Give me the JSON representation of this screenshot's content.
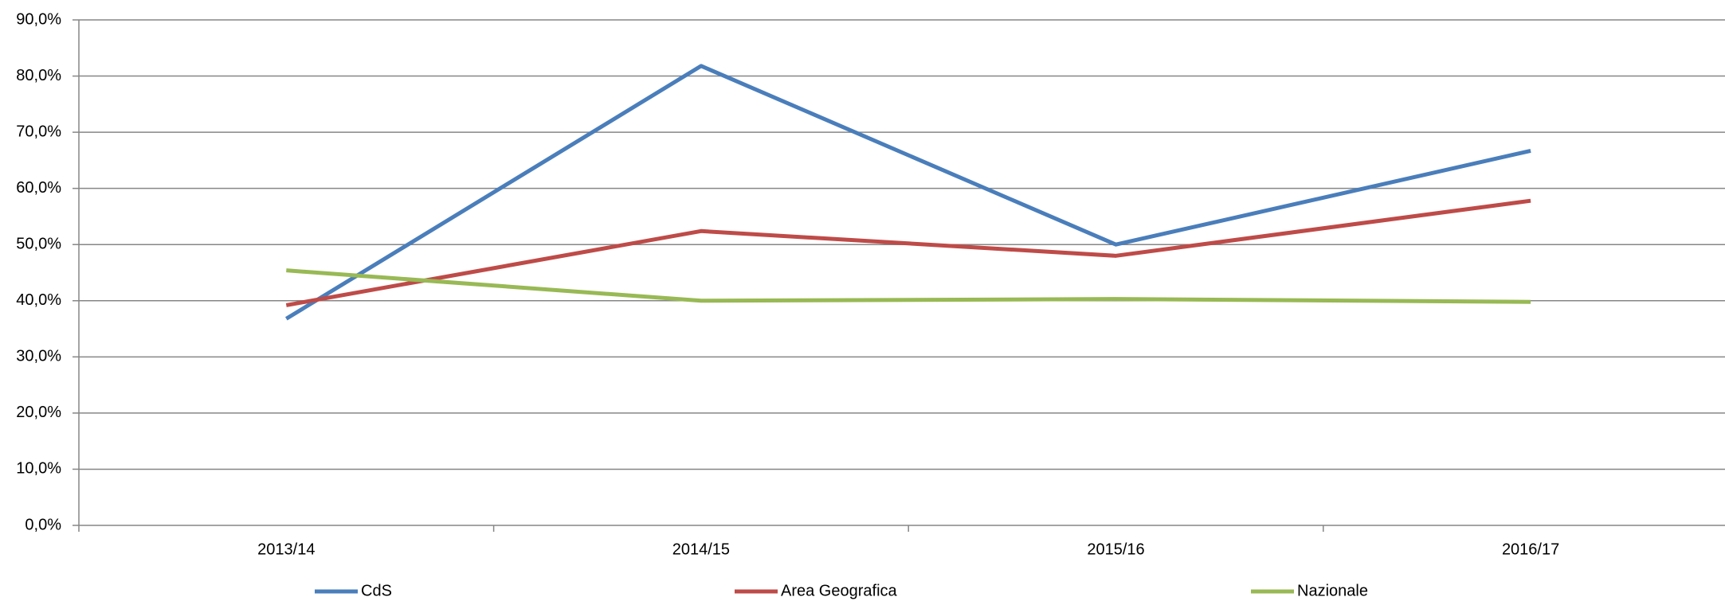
{
  "chart_data": {
    "type": "line",
    "categories": [
      "2013/14",
      "2014/15",
      "2015/16",
      "2016/17"
    ],
    "series": [
      {
        "name": "CdS",
        "color": "#4a7ebb",
        "values": [
          36.8,
          81.8,
          50.0,
          66.7
        ]
      },
      {
        "name": "Area Geografica",
        "color": "#be4b48",
        "values": [
          39.2,
          52.4,
          48.0,
          57.8
        ]
      },
      {
        "name": "Nazionale",
        "color": "#98b954",
        "values": [
          45.4,
          40.0,
          40.3,
          39.8
        ]
      }
    ],
    "ylim": [
      0,
      90
    ],
    "yticks": [
      {
        "value": 0,
        "label": "0,0%"
      },
      {
        "value": 10,
        "label": "10,0%"
      },
      {
        "value": 20,
        "label": "20,0%"
      },
      {
        "value": 30,
        "label": "30,0%"
      },
      {
        "value": 40,
        "label": "40,0%"
      },
      {
        "value": 50,
        "label": "50,0%"
      },
      {
        "value": 60,
        "label": "60,0%"
      },
      {
        "value": 70,
        "label": "70,0%"
      },
      {
        "value": 80,
        "label": "80,0%"
      },
      {
        "value": 90,
        "label": "90,0%"
      }
    ],
    "grid": true,
    "legend": "bottom"
  }
}
